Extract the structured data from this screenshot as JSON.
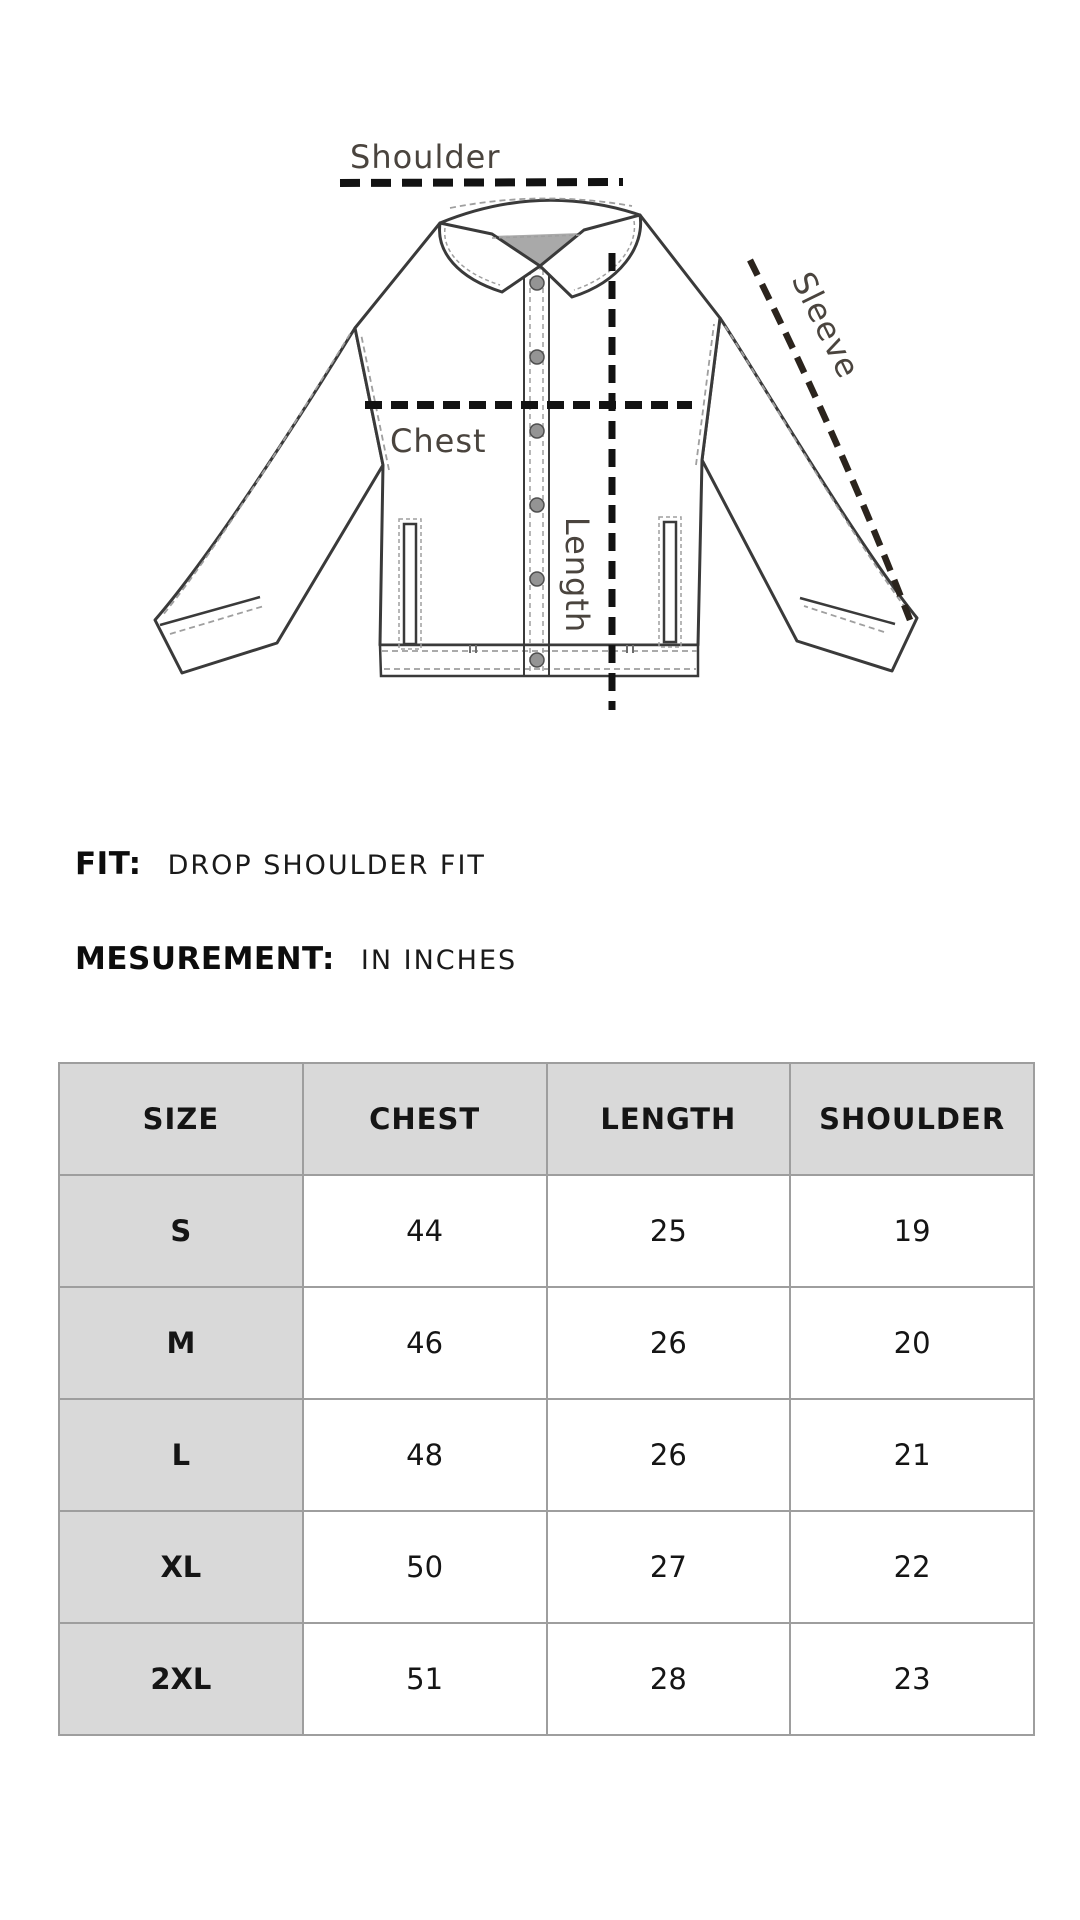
{
  "diagram": {
    "labels": {
      "shoulder": "Shoulder",
      "chest": "Chest",
      "length": "Length",
      "sleeve": "Sleeve"
    }
  },
  "fit": {
    "label": "FIT:",
    "value": "DROP SHOULDER FIT"
  },
  "measurement": {
    "label": "MESUREMENT:",
    "value": "IN INCHES"
  },
  "size_chart": {
    "columns": [
      "SIZE",
      "CHEST",
      "LENGTH",
      "SHOULDER"
    ],
    "rows": [
      [
        "S",
        "44",
        "25",
        "19"
      ],
      [
        "M",
        "46",
        "26",
        "20"
      ],
      [
        "L",
        "48",
        "26",
        "21"
      ],
      [
        "XL",
        "50",
        "27",
        "22"
      ],
      [
        "2XL",
        "51",
        "28",
        "23"
      ]
    ]
  },
  "colors": {
    "header_bg": "#d9d9d9",
    "table_border": "#9e9e9e",
    "measure_line": "#121212",
    "sleeve_line": "#2b241d",
    "diagram_label": "#4a443e",
    "jacket_outline": "#3a3a3a",
    "stitch": "#9f9f9f",
    "collar_inner": "#a9a9a9"
  }
}
